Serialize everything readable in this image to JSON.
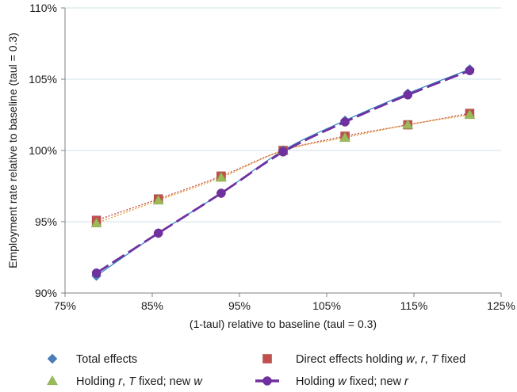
{
  "chart_data": {
    "type": "scatter",
    "xlabel": "(1-taul) relative to baseline (taul = 0.3)",
    "ylabel": "Employment rate relative to baseline (taul = 0.3)",
    "xlim": [
      75,
      125
    ],
    "ylim": [
      90,
      110
    ],
    "x_ticks": [
      "75%",
      "85%",
      "95%",
      "105%",
      "115%",
      "125%"
    ],
    "y_ticks": [
      "90%",
      "95%",
      "100%",
      "105%",
      "110%"
    ],
    "grid": "horizontal",
    "legend_position": "bottom",
    "series": [
      {
        "name": "Total effects",
        "marker": "diamond",
        "color": "#4a7ebb",
        "line": "solid",
        "line_color": "#2e86c1",
        "x": [
          78.6,
          85.7,
          92.9,
          100.0,
          107.1,
          114.3,
          121.4
        ],
        "y": [
          91.2,
          94.2,
          97.0,
          100.0,
          102.1,
          104.0,
          105.7
        ]
      },
      {
        "name": "Direct effects holding w, r, T fixed",
        "marker": "square",
        "color": "#c0504d",
        "line": "dotted",
        "line_color": "#c0504d",
        "x": [
          78.6,
          85.7,
          92.9,
          100.0,
          107.1,
          114.3,
          121.4
        ],
        "y": [
          95.1,
          96.6,
          98.2,
          100.0,
          101.0,
          101.8,
          102.6
        ]
      },
      {
        "name": "Holding r, T fixed; new w",
        "marker": "triangle",
        "color": "#9bbb59",
        "line": "dotted",
        "line_color": "#e7a33a",
        "x": [
          78.6,
          85.7,
          92.9,
          100.0,
          107.1,
          114.3,
          121.4
        ],
        "y": [
          94.9,
          96.5,
          98.1,
          100.0,
          100.9,
          101.8,
          102.5
        ]
      },
      {
        "name": "Holding w fixed; new r",
        "marker": "circle",
        "color": "#7030a0",
        "line": "dashed",
        "line_color": "#7030a0",
        "x": [
          78.6,
          85.7,
          92.9,
          100.0,
          107.1,
          114.3,
          121.4
        ],
        "y": [
          91.4,
          94.2,
          97.0,
          99.9,
          102.0,
          103.9,
          105.6
        ]
      }
    ]
  },
  "legend": {
    "items": [
      {
        "parts": [
          {
            "t": "Total effects",
            "i": false
          }
        ]
      },
      {
        "parts": [
          {
            "t": "Direct effects holding ",
            "i": false
          },
          {
            "t": "w",
            "i": true
          },
          {
            "t": ", ",
            "i": false
          },
          {
            "t": "r",
            "i": true
          },
          {
            "t": ", ",
            "i": false
          },
          {
            "t": "T",
            "i": true
          },
          {
            "t": " fixed",
            "i": false
          }
        ]
      },
      {
        "parts": [
          {
            "t": "Holding ",
            "i": false
          },
          {
            "t": "r",
            "i": true
          },
          {
            "t": ", ",
            "i": false
          },
          {
            "t": "T",
            "i": true
          },
          {
            "t": " fixed; new ",
            "i": false
          },
          {
            "t": "w",
            "i": true
          }
        ]
      },
      {
        "parts": [
          {
            "t": "Holding ",
            "i": false
          },
          {
            "t": "w",
            "i": true
          },
          {
            "t": " fixed; new ",
            "i": false
          },
          {
            "t": "r",
            "i": true
          }
        ]
      }
    ]
  }
}
